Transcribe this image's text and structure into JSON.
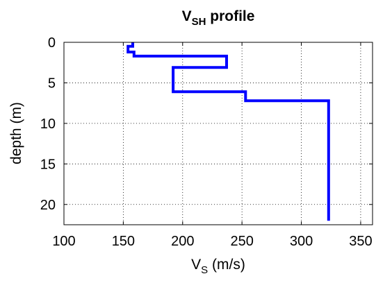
{
  "chart_data": {
    "type": "line",
    "title": {
      "main": "V",
      "sub": "SH",
      "rest": " profile"
    },
    "xlabel": {
      "main": "V",
      "sub": "S",
      "rest": " (m/s)"
    },
    "ylabel": "depth (m)",
    "xlim": [
      100,
      360
    ],
    "ylim": [
      0,
      22.5
    ],
    "y_reversed": true,
    "grid": true,
    "grid_style": "dotted",
    "xticks": [
      100,
      150,
      200,
      250,
      300,
      350
    ],
    "yticks": [
      0,
      5,
      10,
      15,
      20
    ],
    "series": [
      {
        "color": "#0000ff",
        "x": [
          158,
          158,
          154,
          154,
          159,
          159,
          237,
          237,
          192,
          192,
          253,
          253,
          323,
          323
        ],
        "y": [
          0,
          0.5,
          0.5,
          1.2,
          1.2,
          1.7,
          1.7,
          3.1,
          3.1,
          6.1,
          6.1,
          7.2,
          7.2,
          22
        ]
      }
    ]
  }
}
